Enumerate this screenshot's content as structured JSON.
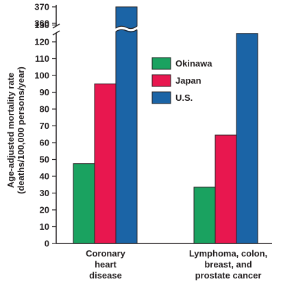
{
  "chart_data": {
    "type": "bar",
    "ylabel_lines": [
      "Age-adjusted mortality rate",
      "(deaths/100,000 persons/year)"
    ],
    "categories": [
      {
        "lines": [
          "Coronary",
          "heart",
          "disease"
        ]
      },
      {
        "lines": [
          "Lymphoma, colon,",
          "breast, and",
          "prostate cancer"
        ]
      }
    ],
    "series": [
      {
        "name": "Okinawa",
        "color": "#1aa260",
        "values": [
          47.5,
          33.5
        ]
      },
      {
        "name": "Japan",
        "color": "#e8174f",
        "values": [
          95,
          64.5
        ]
      },
      {
        "name": "U.S.",
        "color": "#1b64a6",
        "values": [
          370,
          125
        ]
      }
    ],
    "y_ticks_lower": [
      0,
      10,
      20,
      30,
      40,
      50,
      60,
      70,
      80,
      90,
      100,
      110,
      120,
      130
    ],
    "y_ticks_upper": [
      360,
      370
    ],
    "y_break": true,
    "ylim_lower": [
      0,
      135
    ],
    "ylim_upper": [
      360,
      370
    ],
    "legend_position": "upper-middle",
    "grid": false
  }
}
